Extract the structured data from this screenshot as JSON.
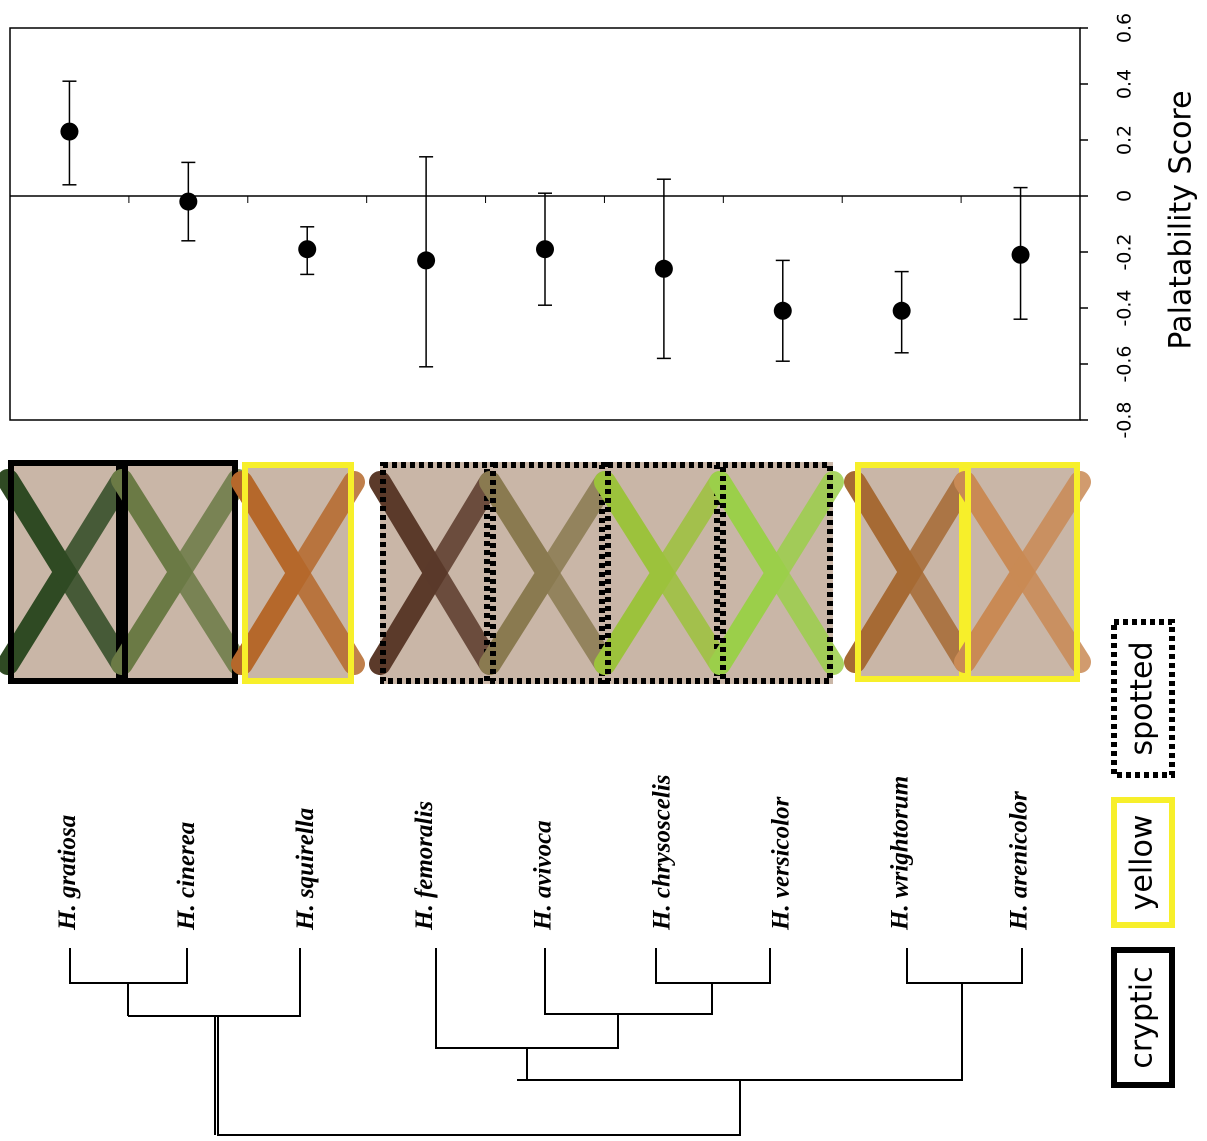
{
  "chart_data": {
    "type": "errorbar",
    "y_label": "Palatability Score",
    "categories": [
      "H. gratiosa",
      "H. cinerea",
      "H. squirella",
      "H. femoralis",
      "H. avivoca",
      "H. chrysoscelis",
      "H. versicolor",
      "H. wrightorum",
      "H. arenicolor"
    ],
    "values": [
      0.23,
      -0.02,
      -0.19,
      -0.23,
      -0.19,
      -0.26,
      -0.41,
      -0.41,
      -0.21
    ],
    "lower": [
      0.04,
      -0.16,
      -0.28,
      -0.61,
      -0.39,
      -0.58,
      -0.59,
      -0.56,
      -0.44
    ],
    "upper": [
      0.41,
      0.12,
      -0.11,
      0.14,
      0.01,
      0.06,
      -0.23,
      -0.27,
      0.03
    ],
    "color": "#000000",
    "ylim": [
      -0.8,
      0.6
    ],
    "yticks": [
      -0.8,
      -0.6,
      -0.4,
      -0.2,
      0,
      0.2,
      0.4,
      0.6
    ],
    "legend": [
      {
        "name": "cryptic",
        "color": "#000000",
        "style": "solid"
      },
      {
        "name": "yellow",
        "color": "#f7ef2a",
        "style": "solid"
      },
      {
        "name": "spotted",
        "color": "#000000",
        "style": "dotted"
      }
    ],
    "group": [
      0,
      0,
      1,
      2,
      2,
      2,
      2,
      1,
      1
    ]
  }
}
